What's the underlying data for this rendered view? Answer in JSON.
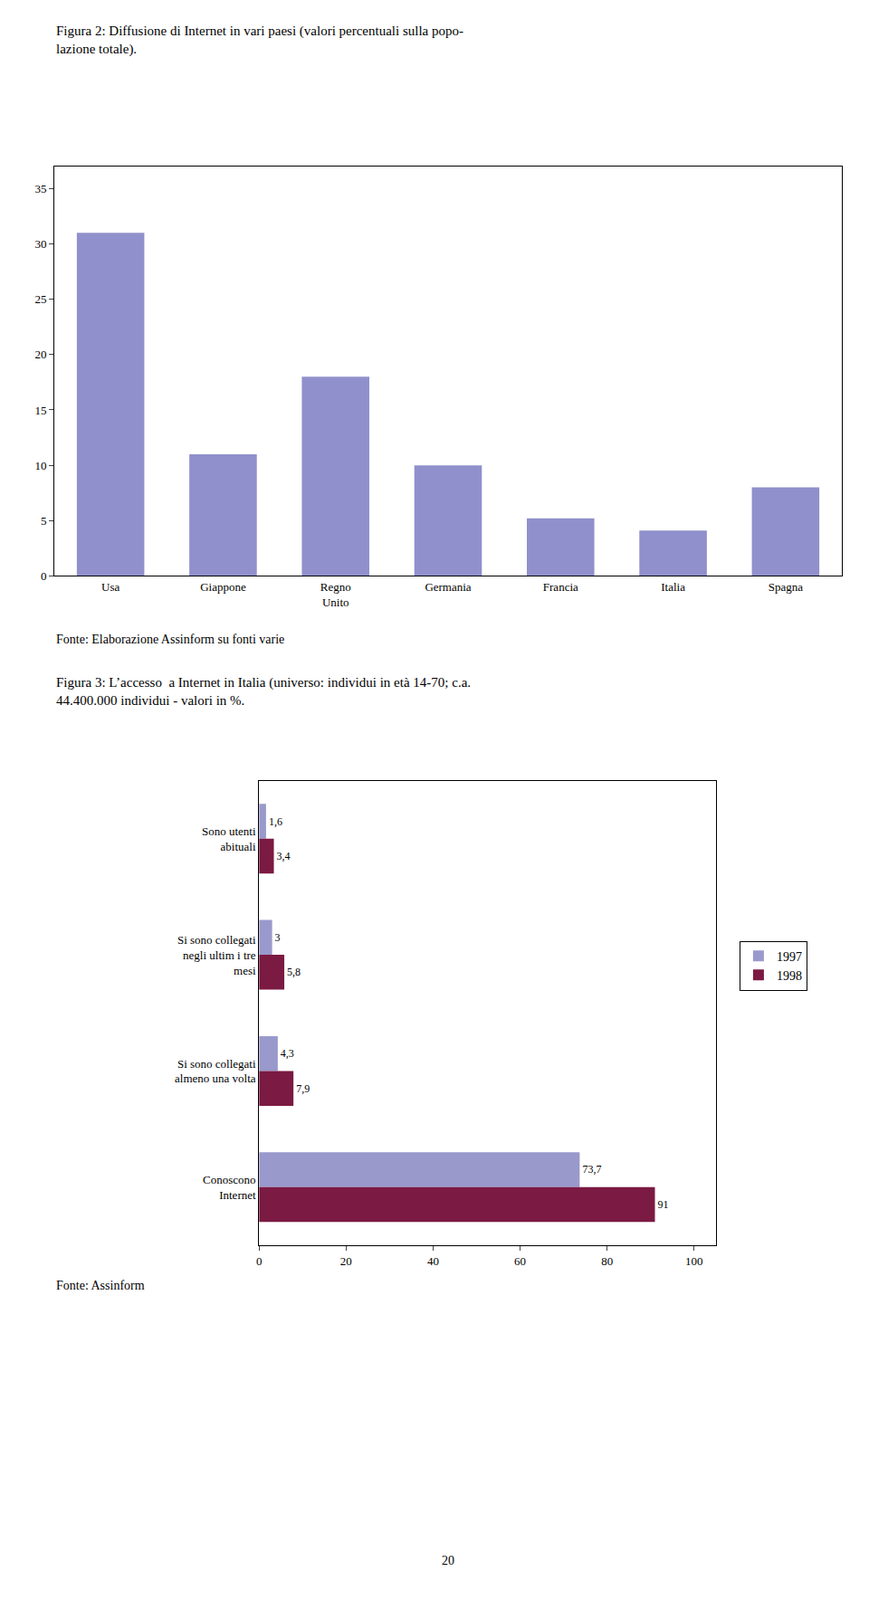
{
  "chart_data": [
    {
      "type": "bar",
      "title": "Figura 2: Diffusione di Internet in vari paesi (valori percentuali sulla popo-\nlazione totale).",
      "categories": [
        "Usa",
        "Giappone",
        "Regno\nUnito",
        "Germania",
        "Francia",
        "Italia",
        "Spagna"
      ],
      "values": [
        31,
        11,
        18,
        10,
        5.2,
        4.1,
        8
      ],
      "color": "#9090cc",
      "ylim": [
        0,
        37
      ],
      "yticks": [
        0,
        5,
        10,
        15,
        20,
        25,
        30,
        35
      ],
      "grid": false,
      "annotations": [
        "Fonte: Elaborazione Assinform su fonti varie"
      ]
    },
    {
      "type": "bar",
      "orientation": "horizontal",
      "title": "Figura 3: L’accesso  a Internet in Italia (universo: individui in età 14-70; c.a.\n44.400.000 individui - valori in %.",
      "categories": [
        "Sono utenti\nabituali",
        "Si sono collegati\nnegli ultim i tre\nmesi",
        "Si sono collegati\nalmeno una volta",
        "Conoscono\nInternet"
      ],
      "series": [
        {
          "name": "1997",
          "color": "#9999cc",
          "values": [
            1.6,
            3.0,
            4.3,
            73.7
          ],
          "value_labels": [
            "1,6",
            "3",
            "4,3",
            "73,7"
          ]
        },
        {
          "name": "1998",
          "color": "#7b1a42",
          "values": [
            3.4,
            5.8,
            7.9,
            91
          ],
          "value_labels": [
            "3,4",
            "5,8",
            "7,9",
            "91"
          ]
        }
      ],
      "xlim": [
        0,
        105
      ],
      "xticks": [
        0,
        20,
        40,
        60,
        80,
        100
      ],
      "data_labels": true,
      "legend": "right",
      "grid": false,
      "annotations": [
        "Fonte: Assinform",
        "20"
      ]
    }
  ]
}
